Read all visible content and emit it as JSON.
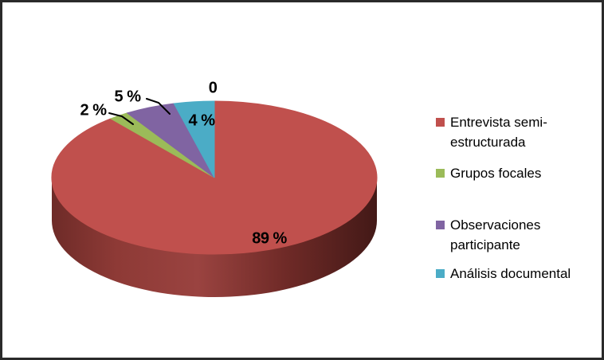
{
  "chart_data": {
    "type": "pie",
    "projection": "3d",
    "title": "",
    "unit": "%",
    "direction": "clockwise",
    "start_angle_deg": 0,
    "legend_position": "right",
    "series": [
      {
        "name": "Entrevista semi-estructurada",
        "value": 89,
        "label": "89 %",
        "color": "#c0504d"
      },
      {
        "name": "Grupos focales",
        "value": 2,
        "label": "2 %",
        "color": "#9bbb59"
      },
      {
        "name": "Observaciones participante",
        "value": 5,
        "label": "5 %",
        "color": "#8064a2"
      },
      {
        "name": "Análisis documental",
        "value": 4,
        "label": "4 %",
        "color": "#4bacc6"
      }
    ],
    "zero_label": "0",
    "side_gradient_colors": [
      "#6e2b28",
      "#8e3a36",
      "#9a4340",
      "#6f2a27",
      "#431917"
    ]
  },
  "legend": {
    "items": [
      {
        "label": "Entrevista semi-estructurada",
        "lines": [
          "Entrevista semi-",
          "estructurada"
        ]
      },
      {
        "label": "Grupos focales",
        "lines": [
          "Grupos focales"
        ]
      },
      {
        "label": "Observaciones participante",
        "lines": [
          "Observaciones",
          "participante"
        ]
      },
      {
        "label": "Análisis documental",
        "lines": [
          "Análisis documental"
        ]
      }
    ]
  },
  "frame": {
    "background": "#ffffff",
    "border_color": "#2a2a2a"
  }
}
